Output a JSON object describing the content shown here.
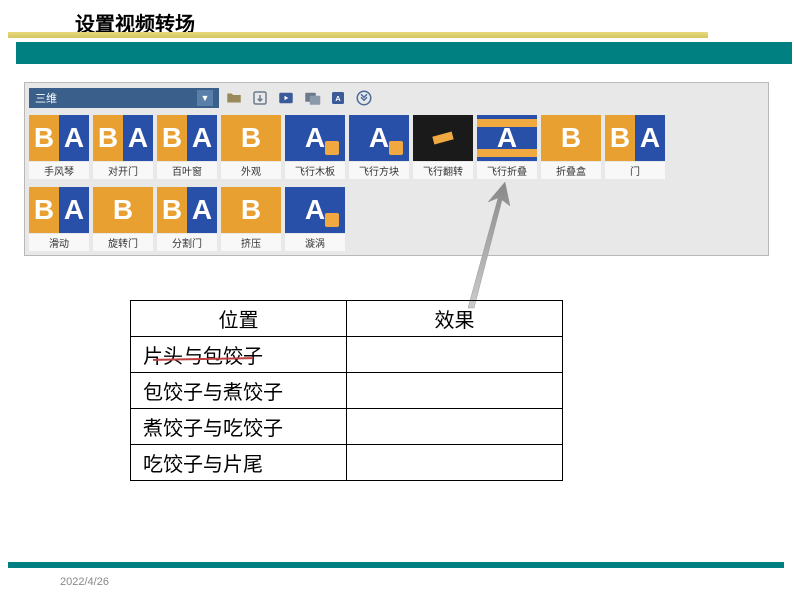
{
  "title": "设置视频转场",
  "dropdown": {
    "label": "三维"
  },
  "transitions_row1": [
    {
      "label": "手风琴",
      "style": "split"
    },
    {
      "label": "对开门",
      "style": "split"
    },
    {
      "label": "百叶窗",
      "style": "split"
    },
    {
      "label": "外观",
      "style": "orange"
    },
    {
      "label": "飞行木板",
      "style": "blue-accent"
    },
    {
      "label": "飞行方块",
      "style": "blue-accent"
    },
    {
      "label": "飞行翻转",
      "style": "dark"
    },
    {
      "label": "飞行折叠",
      "style": "blue-band"
    },
    {
      "label": "折叠盒",
      "style": "orange"
    },
    {
      "label": "门",
      "style": "split"
    }
  ],
  "transitions_row2": [
    {
      "label": "滑动",
      "style": "split"
    },
    {
      "label": "旋转门",
      "style": "orange"
    },
    {
      "label": "分割门",
      "style": "split"
    },
    {
      "label": "挤压",
      "style": "orange"
    },
    {
      "label": "漩涡",
      "style": "blue-accent"
    }
  ],
  "table": {
    "headers": [
      "位置",
      "效果"
    ],
    "rows": [
      [
        "片头与包饺子",
        ""
      ],
      [
        "包饺子与煮饺子",
        ""
      ],
      [
        "煮饺子与吃饺子",
        ""
      ],
      [
        "吃饺子与片尾",
        ""
      ]
    ]
  },
  "date": "2022/4/26",
  "colors": {
    "teal": "#008080",
    "gold": "#d4c560",
    "panel": "#e8e8e8",
    "thumb_blue": "#2850a8",
    "thumb_orange": "#e8a030"
  }
}
